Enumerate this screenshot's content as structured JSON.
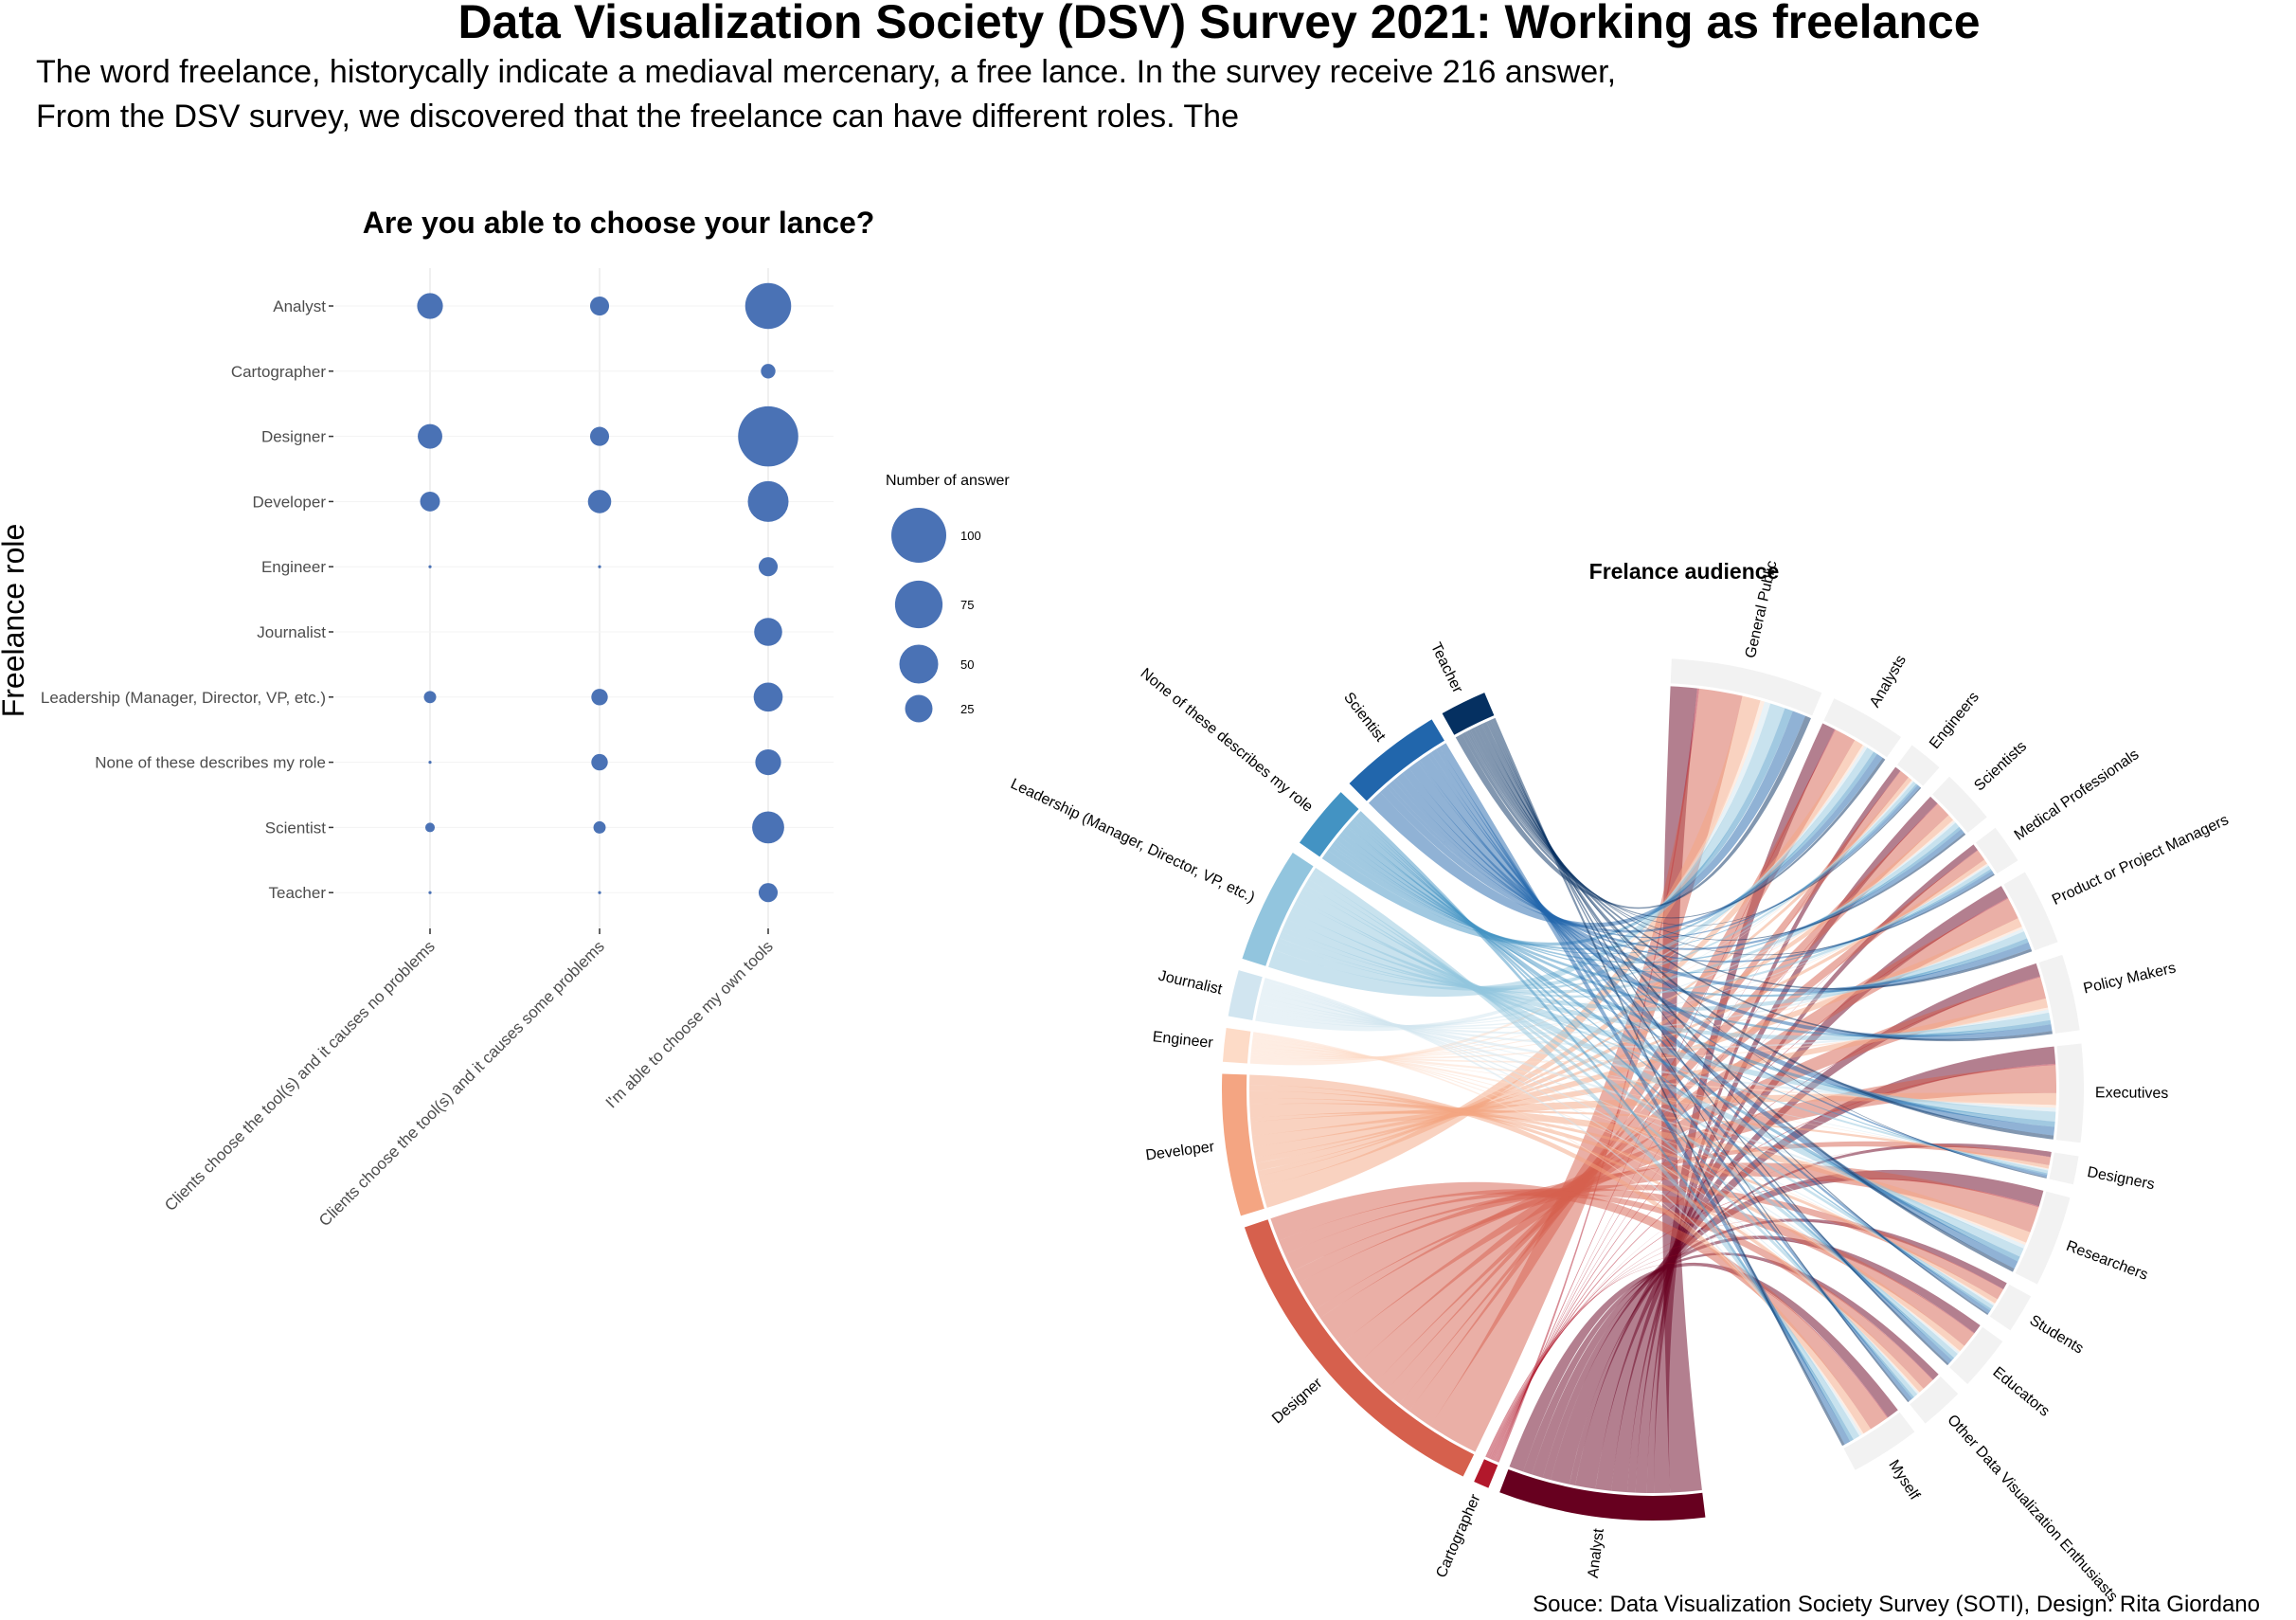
{
  "title": "Data Visualization Society (DSV) Survey 2021: Working as freelance",
  "subtitle_line1": "The word freelance, historycally  indicate a mediaval mercenary, a free lance. In the survey receive 216 answer,",
  "subtitle_line2": "From the DSV survey, we discovered that the freelance can have different roles. The",
  "source": "Souce: Data Visualization Society Survey (SOTI), Design: Rita Giordano",
  "colors": {
    "bubble": "#4a72b5",
    "background": "#ffffff"
  },
  "chart_data": [
    {
      "type": "scatter",
      "subtype": "bubble",
      "title": "Are you able to choose your lance?",
      "ylabel": "Freelance role",
      "xlabel": "",
      "grid": true,
      "categories_y": [
        "Analyst",
        "Cartographer",
        "Designer",
        "Developer",
        "Engineer",
        "Journalist",
        "Leadership (Manager, Director, VP, etc.)",
        "None of these describes my role",
        "Scientist",
        "Teacher"
      ],
      "categories_x": [
        "Clients choose the tool(s) and it causes no problems",
        "Clients choose the tool(s) and it causes some problems",
        "I'm able to choose my own tools"
      ],
      "values": [
        [
          22,
          12,
          70
        ],
        [
          0,
          0,
          7
        ],
        [
          20,
          12,
          120
        ],
        [
          13,
          18,
          55
        ],
        [
          0.3,
          0.3,
          12
        ],
        [
          0,
          0,
          26
        ],
        [
          5,
          9,
          28
        ],
        [
          0.3,
          9,
          22
        ],
        [
          3,
          5,
          34
        ],
        [
          0.3,
          0.3,
          12
        ]
      ],
      "legend": {
        "title": "Number of answer",
        "position": "right",
        "entries": [
          {
            "label": "100",
            "value": 100
          },
          {
            "label": "75",
            "value": 75
          },
          {
            "label": "50",
            "value": 50
          },
          {
            "label": "25",
            "value": 25
          }
        ]
      }
    },
    {
      "type": "chord",
      "title": "Frelance audience",
      "sources": [
        {
          "name": "Analyst",
          "size": 8,
          "color": "#67001f"
        },
        {
          "name": "Cartographer",
          "size": 0.6,
          "color": "#b2182b"
        },
        {
          "name": "Designer",
          "size": 13,
          "color": "#d6604d"
        },
        {
          "name": "Developer",
          "size": 5.5,
          "color": "#f4a582"
        },
        {
          "name": "Engineer",
          "size": 1.3,
          "color": "#fddbc7"
        },
        {
          "name": "Journalist",
          "size": 1.8,
          "color": "#d1e5f0"
        },
        {
          "name": "Leadership (Manager, Director, VP, etc.)",
          "size": 4.5,
          "color": "#92c5de"
        },
        {
          "name": "None of these describes my role",
          "size": 2.5,
          "color": "#4393c3"
        },
        {
          "name": "Scientist",
          "size": 4,
          "color": "#2166ac"
        },
        {
          "name": "Teacher",
          "size": 1.8,
          "color": "#053061"
        }
      ],
      "targets": [
        {
          "name": "General Public",
          "size": 7
        },
        {
          "name": "Analysts",
          "size": 3.5
        },
        {
          "name": "Engineers",
          "size": 1.6
        },
        {
          "name": "Scientists",
          "size": 2.5
        },
        {
          "name": "Medical Professionals",
          "size": 1.8
        },
        {
          "name": "Product or Project Managers",
          "size": 3.5
        },
        {
          "name": "Policy Makers",
          "size": 3.5
        },
        {
          "name": "Executives",
          "size": 4.5
        },
        {
          "name": "Designers",
          "size": 1.3
        },
        {
          "name": "Researchers",
          "size": 4.2
        },
        {
          "name": "Students",
          "size": 1.8
        },
        {
          "name": "Educators",
          "size": 2.5
        },
        {
          "name": "Other Data Visualization Enthusiasts",
          "size": 2.0
        },
        {
          "name": "Myself",
          "size": 3.2
        }
      ],
      "target_color": "#f2f2f2"
    }
  ]
}
